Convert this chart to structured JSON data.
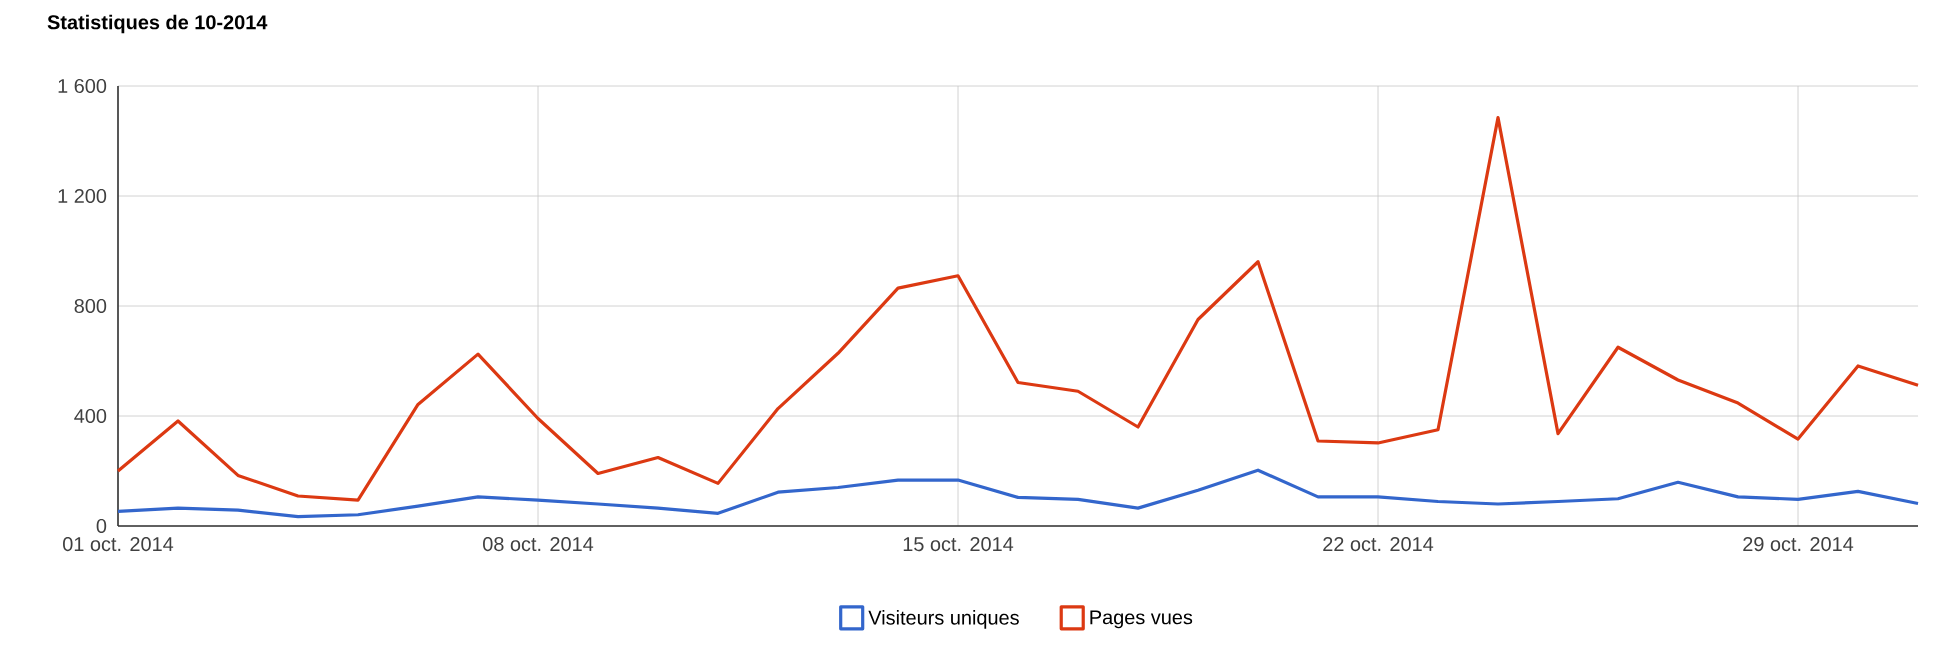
{
  "chart_data": {
    "type": "line",
    "title": "Statistiques de 10-2014",
    "x": [
      "2014-10-01",
      "2014-10-02",
      "2014-10-03",
      "2014-10-04",
      "2014-10-05",
      "2014-10-06",
      "2014-10-07",
      "2014-10-08",
      "2014-10-09",
      "2014-10-10",
      "2014-10-11",
      "2014-10-12",
      "2014-10-13",
      "2014-10-14",
      "2014-10-15",
      "2014-10-16",
      "2014-10-17",
      "2014-10-18",
      "2014-10-19",
      "2014-10-20",
      "2014-10-21",
      "2014-10-22",
      "2014-10-23",
      "2014-10-24",
      "2014-10-25",
      "2014-10-26",
      "2014-10-27",
      "2014-10-28",
      "2014-10-29",
      "2014-10-30",
      "2014-10-31"
    ],
    "series": [
      {
        "name": "Visiteurs uniques",
        "color": "#3366cc",
        "values": [
          53,
          65,
          58,
          34,
          41,
          72,
          106,
          94,
          80,
          65,
          46,
          123,
          140,
          167,
          167,
          104,
          97,
          65,
          130,
          203,
          106,
          106,
          89,
          80,
          89,
          99,
          159,
          106,
          97,
          126,
          82
        ]
      },
      {
        "name": "Pages vues",
        "color": "#dc3912",
        "values": [
          200,
          382,
          184,
          109,
          94,
          442,
          625,
          391,
          191,
          249,
          155,
          427,
          628,
          865,
          910,
          522,
          490,
          360,
          751,
          961,
          309,
          302,
          350,
          1485,
          336,
          650,
          531,
          447,
          316,
          582,
          512
        ]
      }
    ],
    "xlim": [
      "2014-10-01",
      "2014-10-31"
    ],
    "xticks": [
      {
        "value": "2014-10-01",
        "label": "01 oct. 2014"
      },
      {
        "value": "2014-10-08",
        "label": "08 oct. 2014"
      },
      {
        "value": "2014-10-15",
        "label": "15 oct. 2014"
      },
      {
        "value": "2014-10-22",
        "label": "22 oct. 2014"
      },
      {
        "value": "2014-10-29",
        "label": "29 oct. 2014"
      }
    ],
    "ylim": [
      0,
      1600
    ],
    "yticks": [
      0,
      400,
      800,
      {
        "value": 1200,
        "label": "1 200"
      },
      {
        "value": 1600,
        "label": "1 600"
      }
    ],
    "grid": true,
    "legend": "bottom",
    "marker": "none",
    "line_style": "solid"
  }
}
